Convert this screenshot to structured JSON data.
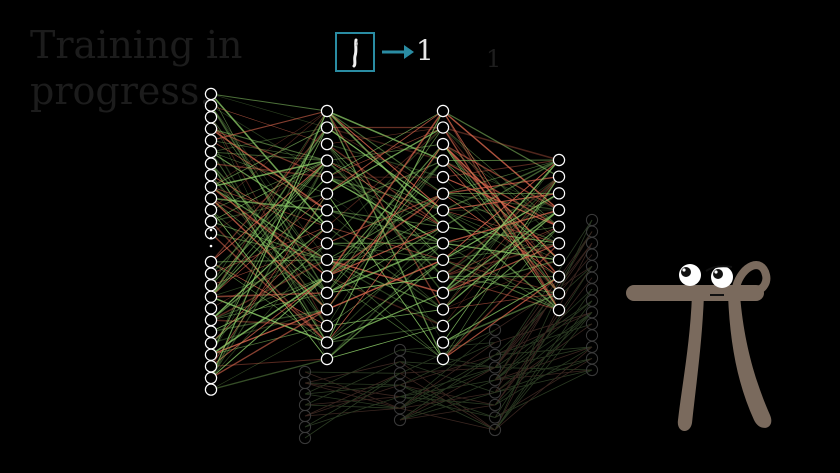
{
  "caption": {
    "line1": "Training in",
    "line2": "progress."
  },
  "example": {
    "output_label": "1",
    "ghost_label": "1"
  },
  "network": {
    "layers": [
      {
        "name": "input",
        "top_nodes": 13,
        "bottom_nodes": 12,
        "ellipsis": true
      },
      {
        "name": "hidden-1",
        "nodes": 16
      },
      {
        "name": "hidden-2",
        "nodes": 16
      },
      {
        "name": "output",
        "nodes": 10
      }
    ]
  },
  "colors": {
    "background": "#000000",
    "node_stroke": "#ffffff",
    "positive_weight": "#8fd16a",
    "negative_weight": "#e06a50",
    "digit_frame": "#2a8ca3",
    "pi_body": "#7a6a5d"
  },
  "mascot": {
    "icon": "pi-creature-icon"
  }
}
